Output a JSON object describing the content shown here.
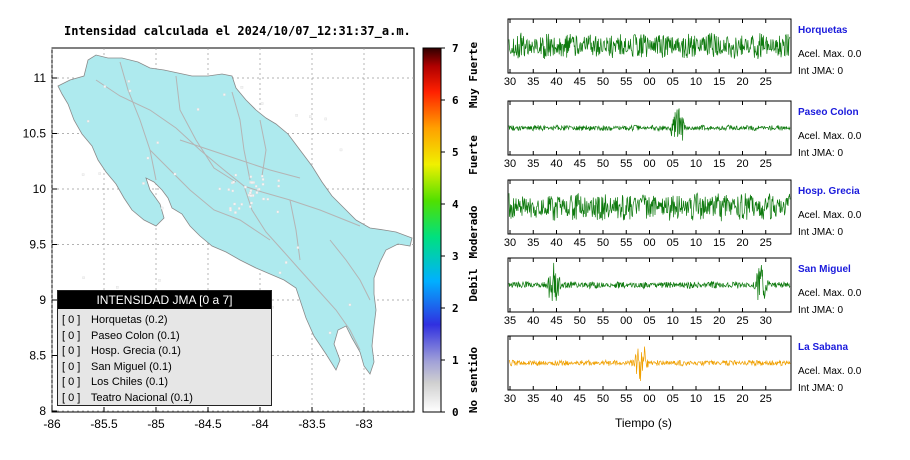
{
  "map": {
    "title": "Intensidad calculada el 2024/10/07_12:31:37_a.m.",
    "x_ticks": [
      "-86",
      "-85.5",
      "-85",
      "-84.5",
      "-84",
      "-83.5",
      "-83"
    ],
    "y_ticks": [
      "11",
      "10.5",
      "10",
      "9.5",
      "9",
      "8.5",
      "8"
    ],
    "land_color": "#aeeaee",
    "road_color": "#b4b4b4"
  },
  "colorbar": {
    "ticks": [
      "0",
      "1",
      "2",
      "3",
      "4",
      "5",
      "6",
      "7"
    ],
    "labels": [
      "No sentido",
      "Debil",
      "Moderado",
      "Fuerte",
      "Muy Fuerte"
    ]
  },
  "legend": {
    "title": "INTENSIDAD JMA [0 a 7]",
    "items": [
      {
        "level": "[ 0 ]",
        "text": "Horquetas (0.2)"
      },
      {
        "level": "[ 0 ]",
        "text": "Paseo Colon (0.1)"
      },
      {
        "level": "[ 0 ]",
        "text": "Hosp. Grecia (0.1)"
      },
      {
        "level": "[ 0 ]",
        "text": "San Miguel (0.1)"
      },
      {
        "level": "[ 0 ]",
        "text": "Los Chiles (0.1)"
      },
      {
        "level": "[ 0 ]",
        "text": "Teatro Nacional (0.1)"
      }
    ]
  },
  "stations": [
    {
      "name": "Horquetas",
      "accel": "Acel. Max. 0.0",
      "jma": "Int JMA: 0",
      "color": "#0e7a0e",
      "ticks": [
        "30",
        "35",
        "40",
        "45",
        "50",
        "55",
        "00",
        "05",
        "10",
        "15",
        "20",
        "25"
      ],
      "amp": 0.55,
      "base": 0.28,
      "spikes": []
    },
    {
      "name": "Paseo Colon",
      "accel": "Acel. Max. 0.0",
      "jma": "Int JMA: 0",
      "color": "#0e7a0e",
      "ticks": [
        "30",
        "35",
        "40",
        "45",
        "50",
        "55",
        "00",
        "05",
        "10",
        "15",
        "20",
        "25"
      ],
      "amp": 0.12,
      "base": 0.06,
      "spikes": [
        0.6
      ]
    },
    {
      "name": "Hosp. Grecia",
      "accel": "Acel. Max. 0.0",
      "jma": "Int JMA: 0",
      "color": "#0e7a0e",
      "ticks": [
        "30",
        "35",
        "40",
        "45",
        "50",
        "55",
        "00",
        "05",
        "10",
        "15",
        "20",
        "25"
      ],
      "amp": 0.6,
      "base": 0.3,
      "spikes": []
    },
    {
      "name": "San Miguel",
      "accel": "Acel. Max. 0.0",
      "jma": "Int JMA: 0",
      "color": "#0e7a0e",
      "ticks": [
        "35",
        "40",
        "45",
        "50",
        "55",
        "00",
        "05",
        "10",
        "15",
        "20",
        "25",
        "30"
      ],
      "amp": 0.15,
      "base": 0.05,
      "spikes": [
        0.16,
        0.9
      ]
    },
    {
      "name": "La Sabana",
      "accel": "Acel. Max. 0.0",
      "jma": "Int JMA: 0",
      "color": "#f0a000",
      "ticks": [
        "30",
        "35",
        "40",
        "45",
        "50",
        "55",
        "00",
        "05",
        "10",
        "15",
        "20",
        "25"
      ],
      "amp": 0.12,
      "base": 0.08,
      "spikes": [
        0.47
      ]
    }
  ],
  "time_axis_label": "Tiempo (s)"
}
